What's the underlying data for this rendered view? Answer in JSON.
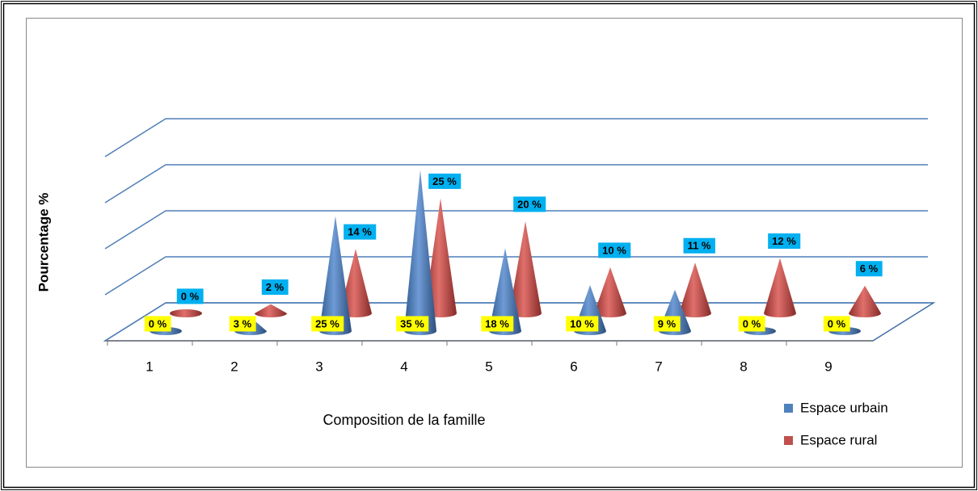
{
  "chart_data": {
    "type": "cone3d",
    "y_axis_label": "Pourcentage %",
    "x_axis_label": "Composition de la famille",
    "categories": [
      "1",
      "2",
      "3",
      "4",
      "5",
      "6",
      "7",
      "8",
      "9"
    ],
    "series": [
      {
        "name": "Espace urbain",
        "color": "#4f81bd",
        "label_bg": "#ffff00",
        "values": [
          0,
          3,
          25,
          35,
          18,
          10,
          9,
          0,
          0
        ],
        "value_labels": [
          "0 %",
          "3 %",
          "25 %",
          "35 %",
          "18 %",
          "10 %",
          "9 %",
          "0 %",
          "0 %"
        ]
      },
      {
        "name": "Espace rural",
        "color": "#c0504d",
        "label_bg": "#00b0f0",
        "values": [
          0,
          2,
          14,
          25,
          20,
          10,
          11,
          12,
          6
        ],
        "value_labels": [
          "0 %",
          "2 %",
          "14 %",
          "25 %",
          "20 %",
          "10 %",
          "11 %",
          "12 %",
          "6 %"
        ]
      }
    ],
    "ylim": [
      0,
      40
    ],
    "yticks": [
      0,
      10,
      20,
      30,
      40
    ],
    "grid": true,
    "legend": "bottom-right"
  }
}
